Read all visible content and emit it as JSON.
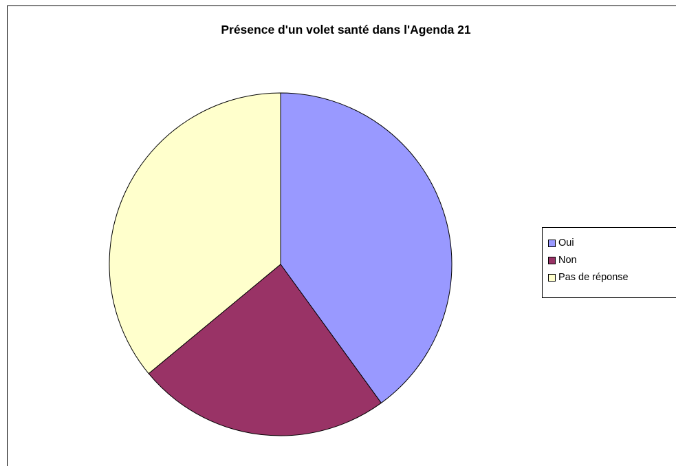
{
  "chart_data": {
    "type": "pie",
    "title": "Présence d'un volet santé dans l'Agenda 21",
    "categories": [
      "Oui",
      "Non",
      "Pas de réponse"
    ],
    "values": [
      40,
      24,
      36
    ],
    "colors": [
      "#9999ff",
      "#993366",
      "#ffffcc"
    ],
    "legend_position": "right"
  }
}
